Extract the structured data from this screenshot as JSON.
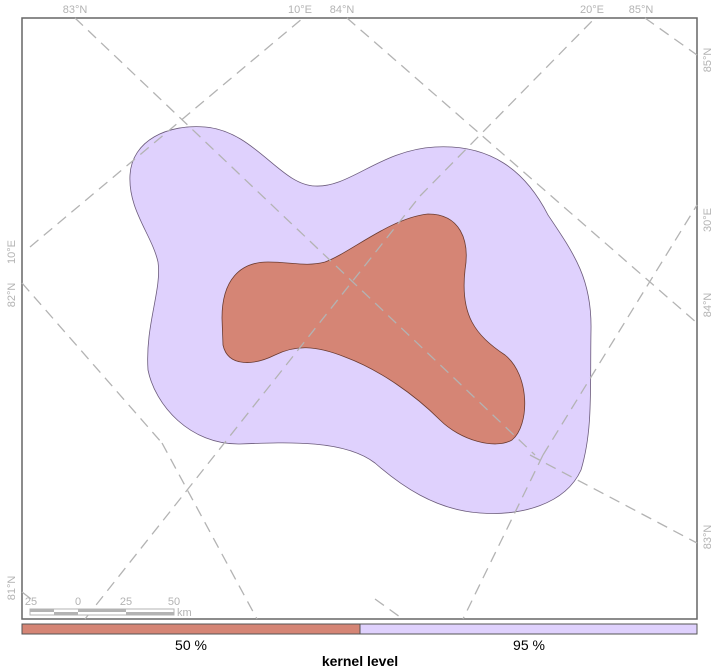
{
  "map": {
    "graticule_labels": {
      "top": [
        "83°N",
        "10°E",
        "84°N",
        "20°E",
        "85°N"
      ],
      "right": [
        "85°N",
        "30°E",
        "84°N",
        "83°N"
      ],
      "left": [
        "10°E",
        "82°N",
        "81°N"
      ]
    },
    "scalebar": {
      "ticks": [
        "25",
        "0",
        "25",
        "50"
      ],
      "unit": "km"
    },
    "kernels": [
      {
        "level": "95 %",
        "color": "#dfd1fd"
      },
      {
        "level": "50 %",
        "color": "#d58575"
      }
    ]
  },
  "legend": {
    "title": "kernel level",
    "items": [
      {
        "label": "50 %",
        "color": "#d58575"
      },
      {
        "label": "95 %",
        "color": "#dfd1fd"
      }
    ]
  }
}
